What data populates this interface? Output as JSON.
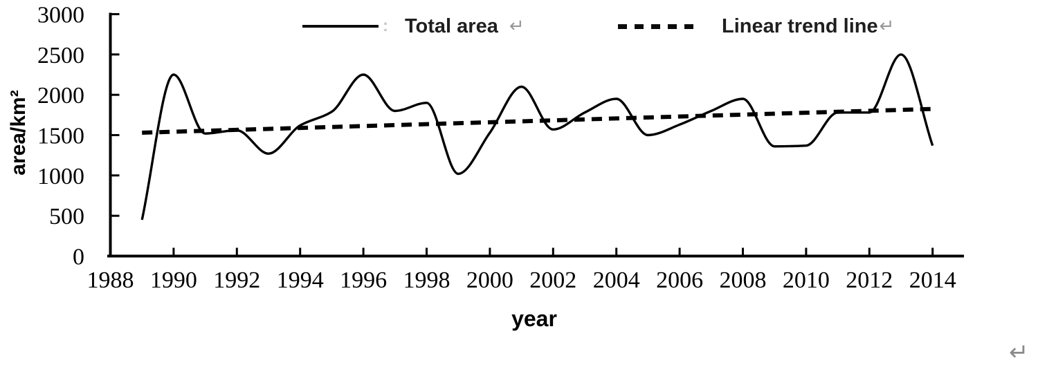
{
  "figure": {
    "y_axis_title": "area/km²",
    "x_axis_title": "year",
    "return_mark": "↵",
    "legend_separator": ":",
    "background": "#ffffff",
    "ink_color": "#000000",
    "legend_text_color": "#1f1f1f",
    "return_mark_color": "#979797"
  },
  "legend": {
    "items": [
      {
        "label": "Total area",
        "style": "solid"
      },
      {
        "label": "Linear trend line",
        "style": "dashed"
      }
    ]
  },
  "chart_data": {
    "type": "line",
    "title": "",
    "xlabel": "year",
    "ylabel": "area/km²",
    "xlim": [
      1988,
      2015
    ],
    "ylim": [
      0,
      3000
    ],
    "grid": false,
    "legend_position": "top",
    "x_ticks": [
      1988,
      1990,
      1992,
      1994,
      1996,
      1998,
      2000,
      2002,
      2004,
      2006,
      2008,
      2010,
      2012,
      2014
    ],
    "y_ticks": [
      0,
      500,
      1000,
      1500,
      2000,
      2500,
      3000
    ],
    "series": [
      {
        "name": "Total area",
        "style": "solid",
        "smooth": true,
        "x": [
          1989,
          1990,
          1991,
          1992,
          1993,
          1994,
          1995,
          1996,
          1997,
          1998,
          1999,
          2000,
          2001,
          2002,
          2003,
          2004,
          2005,
          2006,
          2007,
          2008,
          2009,
          2010,
          2011,
          2012,
          2013,
          2014
        ],
        "values": [
          450,
          2250,
          1520,
          1560,
          1270,
          1620,
          1790,
          2250,
          1800,
          1900,
          1020,
          1530,
          2100,
          1570,
          1780,
          1950,
          1500,
          1630,
          1800,
          1950,
          1360,
          1370,
          1780,
          1780,
          2500,
          1370
        ]
      },
      {
        "name": "Linear trend line",
        "style": "dashed",
        "smooth": false,
        "x": [
          1989,
          2014
        ],
        "values": [
          1530,
          1825
        ]
      }
    ]
  }
}
